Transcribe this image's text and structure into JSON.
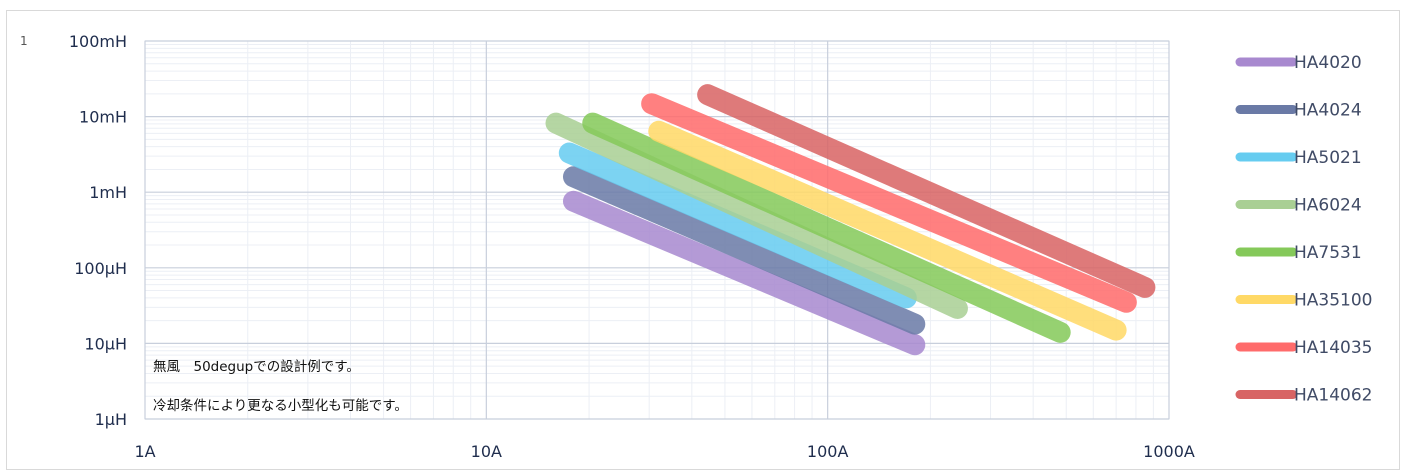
{
  "chart_data": {
    "type": "line",
    "scale": "log-log",
    "x_ticks": [
      "1A",
      "10A",
      "100A",
      "1000A"
    ],
    "y_ticks": [
      "100mH",
      "10mH",
      "1mH",
      "100μH",
      "10μH",
      "1μH"
    ],
    "x_range_A": [
      1,
      1000
    ],
    "y_range_H": [
      1e-06,
      0.1
    ],
    "grid": true,
    "legend_position": "right",
    "annotations": [
      "無風　50degupでの設計例です。",
      "冷却条件により更なる小型化も可能です。"
    ],
    "corner_mark": "1",
    "series": [
      {
        "name": "HA4020",
        "color": "#a889cf",
        "points": [
          [
            18,
            0.00076
          ],
          [
            180,
            9.6e-06
          ]
        ]
      },
      {
        "name": "HA4024",
        "color": "#6a7aa6",
        "points": [
          [
            18,
            0.0016
          ],
          [
            180,
            1.8e-05
          ]
        ]
      },
      {
        "name": "HA5021",
        "color": "#66ccf0",
        "points": [
          [
            17.5,
            0.0033
          ],
          [
            170,
            4e-05
          ]
        ]
      },
      {
        "name": "HA6024",
        "color": "#a9cf94",
        "points": [
          [
            16,
            0.0082
          ],
          [
            240,
            2.9e-05
          ]
        ]
      },
      {
        "name": "HA7531",
        "color": "#85c95a",
        "points": [
          [
            20.5,
            0.0082
          ],
          [
            480,
            1.4e-05
          ]
        ]
      },
      {
        "name": "HA35100",
        "color": "#ffd966",
        "points": [
          [
            32,
            0.0064
          ],
          [
            700,
            1.5e-05
          ]
        ]
      },
      {
        "name": "HA14035",
        "color": "#ff6b6b",
        "points": [
          [
            30.5,
            0.0148
          ],
          [
            750,
            3.5e-05
          ]
        ]
      },
      {
        "name": "HA14062",
        "color": "#d86464",
        "points": [
          [
            44.5,
            0.0195
          ],
          [
            850,
            5.5e-05
          ]
        ]
      }
    ]
  }
}
